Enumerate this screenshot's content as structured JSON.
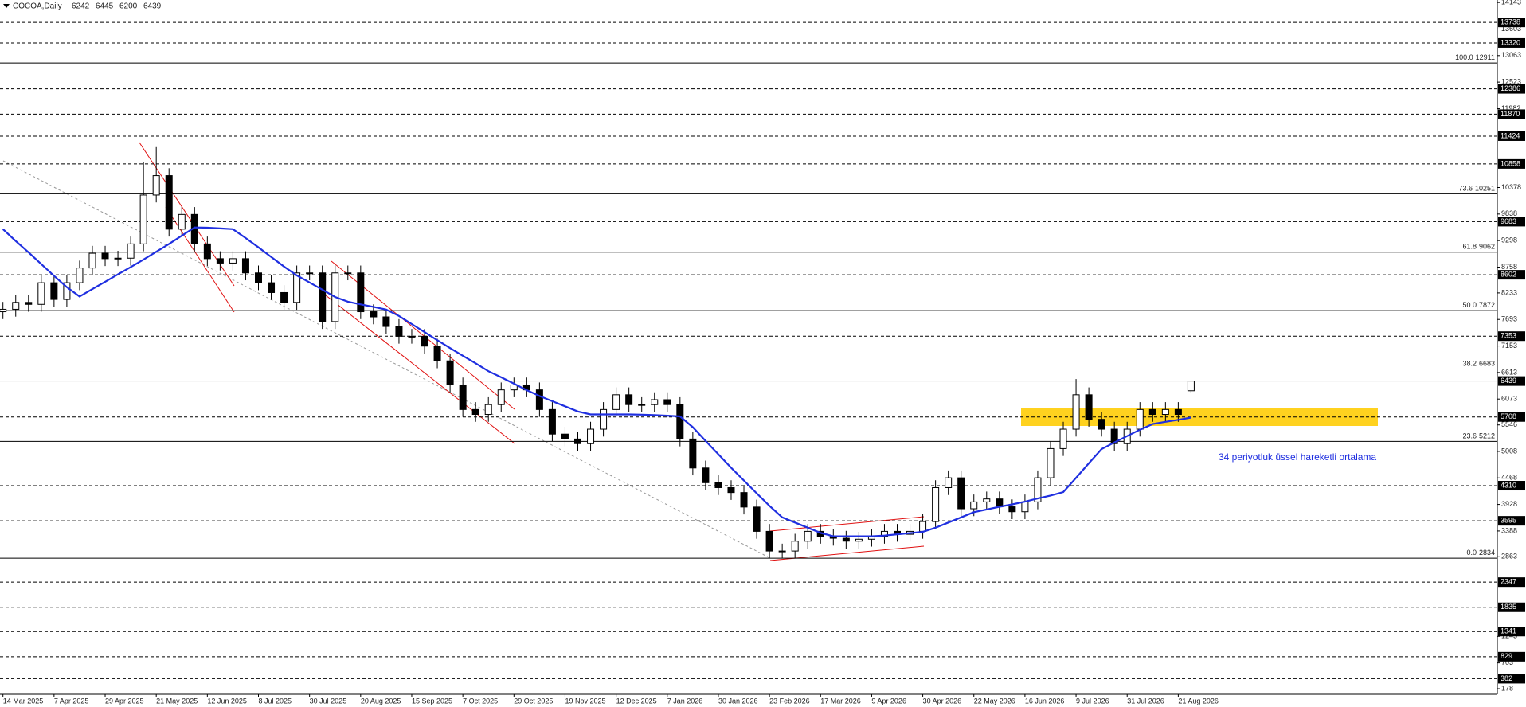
{
  "chart_data": {
    "type": "candlestick",
    "symbol": "COCOA,Daily",
    "categories": [
      "14 Mar 2025",
      null,
      null,
      null,
      "7 Apr 2025",
      null,
      null,
      null,
      "29 Apr 2025",
      null,
      null,
      null,
      "21 May 2025",
      null,
      null,
      null,
      "12 Jun 2025",
      null,
      null,
      null,
      "8 Jul 2025",
      null,
      null,
      null,
      "30 Jul 2025",
      null,
      null,
      null,
      "20 Aug 2025",
      null,
      null,
      null,
      "15 Sep 2025",
      null,
      null,
      null,
      "7 Oct 2025",
      null,
      null,
      null,
      "29 Oct 2025",
      null,
      null,
      null,
      "19 Nov 2025",
      null,
      null,
      null,
      "12 Dec 2025",
      null,
      null,
      null,
      "7 Jan 2026",
      null,
      null,
      null,
      "30 Jan 2026",
      null,
      null,
      null,
      "23 Feb 2026",
      null,
      null,
      null,
      "17 Mar 2026",
      null,
      null,
      null,
      "9 Apr 2026",
      null,
      null,
      null,
      "30 Apr 2026",
      null,
      null,
      null,
      "22 May 2026",
      null,
      null,
      null,
      "16 Jun 2026",
      null,
      null,
      null,
      "9 Jul 2026",
      null,
      null,
      null,
      "31 Jul 2026",
      null,
      null,
      null,
      "21 Aug 2026",
      null
    ],
    "open": [
      7850,
      7900,
      8040,
      8000,
      8440,
      8100,
      8440,
      8740,
      9040,
      8930,
      8940,
      9230,
      10225,
      10620,
      9530,
      9830,
      9230,
      8930,
      8840,
      8930,
      8640,
      8440,
      8240,
      8040,
      8640,
      8640,
      7650,
      8640,
      8640,
      7850,
      7745,
      7550,
      7350,
      7350,
      7150,
      6850,
      6360,
      5860,
      5760,
      5960,
      6260,
      6360,
      6260,
      5860,
      5360,
      5260,
      5165,
      5460,
      5860,
      6160,
      5960,
      5960,
      6060,
      5960,
      5260,
      4670,
      4370,
      4270,
      4170,
      3875,
      3380,
      2980,
      2980,
      3180,
      3380,
      3280,
      3240,
      3180,
      3220,
      3280,
      3380,
      3320,
      3380,
      3580,
      4270,
      4470,
      3840,
      3980,
      4040,
      3880,
      3780,
      3980,
      4470,
      5065,
      5460,
      6160,
      5660,
      5460,
      5165,
      5460,
      5860,
      5760,
      5860,
      6242
    ],
    "high": [
      8050,
      8190,
      8190,
      8590,
      8590,
      8590,
      8890,
      9190,
      9190,
      9090,
      9380,
      10900,
      11200,
      10770,
      9980,
      9980,
      9380,
      9080,
      9080,
      9080,
      8790,
      8590,
      8390,
      8790,
      8790,
      8790,
      8790,
      8790,
      8790,
      8000,
      7895,
      7700,
      7500,
      7500,
      7300,
      7000,
      6510,
      6010,
      6110,
      6410,
      6510,
      6510,
      6410,
      6010,
      5510,
      5410,
      5610,
      6010,
      6310,
      6310,
      6110,
      6210,
      6210,
      6110,
      5410,
      4820,
      4520,
      4420,
      4320,
      4025,
      3530,
      3130,
      3330,
      3530,
      3530,
      3430,
      3390,
      3370,
      3430,
      3530,
      3530,
      3530,
      3730,
      4420,
      4620,
      4620,
      4130,
      4190,
      4190,
      4030,
      4130,
      4620,
      5215,
      5610,
      6480,
      6310,
      5810,
      5610,
      5610,
      6010,
      6010,
      6010,
      6010,
      6445
    ],
    "low": [
      7700,
      7750,
      7850,
      7850,
      7950,
      7950,
      8290,
      8590,
      8780,
      8780,
      8790,
      9080,
      10075,
      9380,
      9380,
      9080,
      8780,
      8690,
      8690,
      8490,
      8290,
      8090,
      7890,
      7890,
      8490,
      7500,
      7500,
      8490,
      7700,
      7595,
      7400,
      7200,
      7200,
      7000,
      6700,
      6210,
      5710,
      5610,
      5610,
      5810,
      6110,
      6110,
      5710,
      5210,
      5110,
      5015,
      5015,
      5310,
      5710,
      5810,
      5810,
      5810,
      5810,
      5110,
      4520,
      4220,
      4120,
      4020,
      3725,
      3230,
      2830,
      2830,
      2830,
      3030,
      3130,
      3090,
      3030,
      3030,
      3070,
      3130,
      3170,
      3170,
      3230,
      3430,
      4120,
      3690,
      3690,
      3830,
      3730,
      3630,
      3630,
      3830,
      4320,
      4915,
      5310,
      5510,
      5310,
      5015,
      5015,
      5310,
      5610,
      5610,
      5610,
      6200
    ],
    "close": [
      7900,
      8040,
      8000,
      8440,
      8100,
      8440,
      8740,
      9040,
      8930,
      8940,
      9230,
      10225,
      10620,
      9530,
      9830,
      9230,
      8930,
      8840,
      8930,
      8640,
      8440,
      8240,
      8040,
      8640,
      8640,
      7650,
      8640,
      8640,
      7850,
      7745,
      7550,
      7350,
      7350,
      7150,
      6850,
      6360,
      5860,
      5760,
      5960,
      6260,
      6360,
      6260,
      5860,
      5360,
      5260,
      5165,
      5460,
      5860,
      6160,
      5960,
      5960,
      6060,
      5960,
      5260,
      4670,
      4370,
      4270,
      4170,
      3875,
      3380,
      2980,
      2980,
      3180,
      3380,
      3280,
      3240,
      3180,
      3220,
      3280,
      3380,
      3320,
      3380,
      3580,
      4270,
      4470,
      3840,
      3980,
      4040,
      3880,
      3780,
      3980,
      4470,
      5065,
      5460,
      6160,
      5660,
      5460,
      5165,
      5460,
      5860,
      5760,
      5860,
      5760,
      6439
    ],
    "up_color": "#ffffff",
    "down_color": "#000000",
    "ema": {
      "color": "#1f2fe0",
      "values": [
        9530,
        9290,
        9060,
        8820,
        8580,
        8350,
        8160,
        8310,
        8460,
        8610,
        8760,
        8910,
        9070,
        9230,
        9400,
        9565,
        9560,
        9545,
        9530,
        9350,
        9160,
        8965,
        8770,
        8590,
        8445,
        8300,
        8150,
        8055,
        8000,
        7950,
        7895,
        7765,
        7600,
        7435,
        7270,
        7110,
        6955,
        6800,
        6640,
        6515,
        6385,
        6255,
        6135,
        6030,
        5925,
        5820,
        5760,
        5760,
        5760,
        5760,
        5755,
        5745,
        5735,
        5720,
        5500,
        5220,
        4950,
        4675,
        4415,
        4155,
        3900,
        3665,
        3560,
        3455,
        3350,
        3280,
        3280,
        3280,
        3280,
        3295,
        3320,
        3345,
        3370,
        3455,
        3560,
        3665,
        3770,
        3825,
        3880,
        3930,
        3985,
        4050,
        4110,
        4180,
        4470,
        4765,
        5055,
        5190,
        5320,
        5450,
        5565,
        5610,
        5650,
        5695
      ]
    },
    "annotation": "34 periyotluk üssel hareketli ortalama",
    "levels": [
      13738,
      13320,
      12386,
      11870,
      11424,
      10858,
      9683,
      8602,
      7353,
      5708,
      4310,
      3595,
      2347,
      1835,
      1341,
      829,
      382
    ],
    "fib_levels": [
      {
        "ratio": "100.0",
        "value": 12911
      },
      {
        "ratio": "73.6",
        "value": 10251
      },
      {
        "ratio": "61.8",
        "value": 9062
      },
      {
        "ratio": "50.0",
        "value": 7872
      },
      {
        "ratio": "38.2",
        "value": 6683
      },
      {
        "ratio": "23.6",
        "value": 5212
      },
      {
        "ratio": "0.0",
        "value": 2834
      }
    ],
    "ylim": [
      65,
      14194
    ],
    "yticks": [
      14143,
      13603,
      13063,
      12523,
      11982,
      10378,
      9838,
      9298,
      8758,
      8233,
      7693,
      7153,
      6613,
      6073,
      5546,
      5008,
      4468,
      3928,
      3388,
      2863,
      1243,
      703,
      178
    ]
  }
}
